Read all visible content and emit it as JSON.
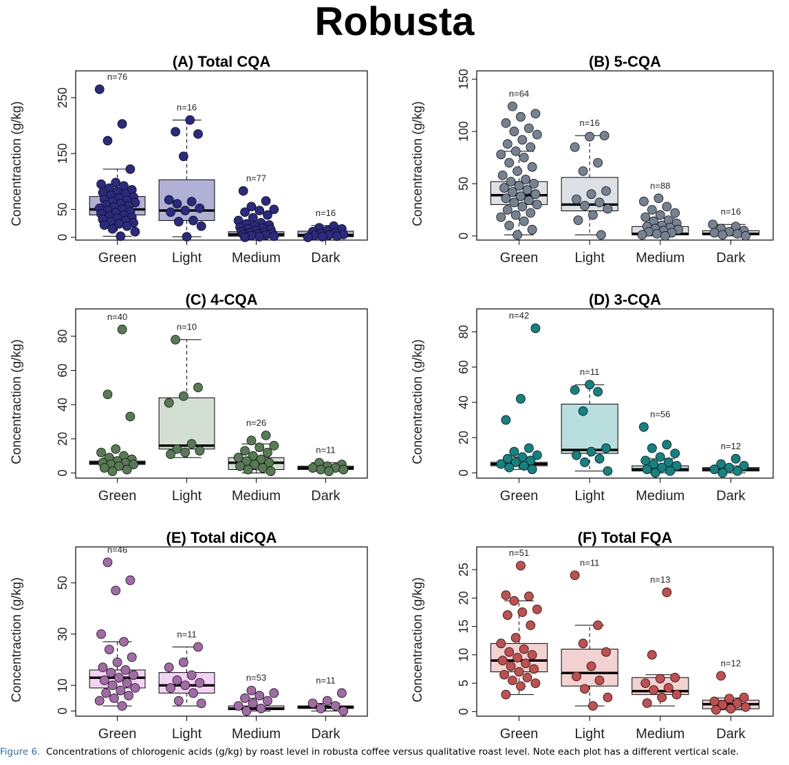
{
  "title": "Robusta",
  "caption": {
    "label": "Figure 6.",
    "text": "Concentrations of chlorogenic acids (g/kg) by roast level in robusta coffee versus qualitative roast level. Note each plot has a different vertical scale."
  },
  "chart_data": [
    {
      "type": "boxplot",
      "title": "(A) Total CQA",
      "ylabel": "Concentraction (g/kg)",
      "xlabel": "",
      "categories": [
        "Green",
        "Light",
        "Medium",
        "Dark"
      ],
      "ylim": [
        -5,
        298
      ],
      "yticks": [
        0,
        50,
        150,
        250
      ],
      "color": "#2a2a80",
      "box_fill": "#b1b1d6",
      "counts": [
        "n=76",
        "n=16",
        "n=77",
        "n=16"
      ],
      "boxes": [
        {
          "whislo": 2,
          "q1": 40,
          "med": 50,
          "q3": 73,
          "whishi": 122
        },
        {
          "whislo": 1,
          "q1": 30,
          "med": 48,
          "q3": 103,
          "whishi": 210
        },
        {
          "whislo": 0,
          "q1": 2,
          "med": 5,
          "q3": 10,
          "whishi": 24
        },
        {
          "whislo": 0,
          "q1": 1,
          "med": 4,
          "q3": 11,
          "whishi": 21
        }
      ],
      "points": [
        [
          265,
          203,
          173,
          122,
          98,
          95,
          92,
          88,
          85,
          82,
          80,
          78,
          75,
          72,
          70,
          68,
          66,
          64,
          62,
          60,
          58,
          56,
          54,
          52,
          50,
          48,
          46,
          44,
          42,
          40,
          38,
          36,
          34,
          32,
          30,
          28,
          26,
          24,
          22,
          20,
          15,
          10,
          2
        ],
        [
          210,
          189,
          185,
          145,
          67,
          64,
          60,
          52,
          48,
          45,
          30,
          28,
          20,
          1
        ],
        [
          83,
          65,
          55,
          50,
          48,
          45,
          40,
          35,
          30,
          26,
          24,
          22,
          20,
          18,
          16,
          15,
          14,
          12,
          10,
          9,
          8,
          7,
          6,
          5,
          4,
          3,
          2,
          1,
          0
        ],
        [
          20,
          17,
          15,
          12,
          10,
          8,
          6,
          5,
          4,
          3,
          2,
          1,
          0
        ]
      ]
    },
    {
      "type": "boxplot",
      "title": "(B) 5-CQA",
      "ylabel": "Concentraction (g/kg)",
      "xlabel": "",
      "categories": [
        "Green",
        "Light",
        "Medium",
        "Dark"
      ],
      "ylim": [
        -4,
        158
      ],
      "yticks": [
        0,
        50,
        100,
        150
      ],
      "color": "#758291",
      "box_fill": "#dde0e4",
      "counts": [
        "n=64",
        "n=16",
        "n=88",
        "n=16"
      ],
      "boxes": [
        {
          "whislo": 1,
          "q1": 30,
          "med": 39,
          "q3": 52,
          "whishi": 81
        },
        {
          "whislo": 1,
          "q1": 24,
          "med": 30,
          "q3": 56,
          "whishi": 96
        },
        {
          "whislo": 0,
          "q1": 1,
          "med": 2,
          "q3": 9,
          "whishi": 17
        },
        {
          "whislo": 0,
          "q1": 1,
          "med": 2,
          "q3": 5,
          "whishi": 11
        }
      ],
      "points": [
        [
          124,
          117,
          114,
          108,
          103,
          100,
          97,
          92,
          88,
          85,
          81,
          78,
          75,
          70,
          66,
          62,
          58,
          54,
          52,
          50,
          48,
          46,
          44,
          42,
          40,
          38,
          36,
          34,
          32,
          30,
          28,
          25,
          22,
          20,
          18,
          14,
          10,
          6,
          1
        ],
        [
          96,
          95,
          85,
          70,
          62,
          43,
          40,
          35,
          32,
          29,
          26,
          20,
          15,
          1
        ],
        [
          36,
          33,
          28,
          25,
          22,
          20,
          18,
          15,
          14,
          12,
          10,
          9,
          8,
          7,
          6,
          5,
          4,
          3,
          2,
          1,
          0
        ],
        [
          11,
          9,
          7,
          5,
          4,
          3,
          2,
          1,
          0
        ]
      ]
    },
    {
      "type": "boxplot",
      "title": "(C) 4-CQA",
      "ylabel": "Concentraction (g/kg)",
      "xlabel": "",
      "categories": [
        "Green",
        "Light",
        "Medium",
        "Dark"
      ],
      "ylim": [
        -3,
        96
      ],
      "yticks": [
        0,
        20,
        40,
        60,
        80
      ],
      "color": "#577a55",
      "box_fill": "#d3dfd2",
      "counts": [
        "n=40",
        "n=10",
        "n=26",
        "n=11"
      ],
      "boxes": [
        {
          "whislo": 2,
          "q1": 5,
          "med": 6,
          "q3": 7,
          "whishi": 9
        },
        {
          "whislo": 9,
          "q1": 14,
          "med": 16,
          "q3": 44,
          "whishi": 78
        },
        {
          "whislo": 0,
          "q1": 2,
          "med": 6,
          "q3": 9,
          "whishi": 17
        },
        {
          "whislo": 1,
          "q1": 2,
          "med": 3,
          "q3": 4,
          "whishi": 6
        }
      ],
      "points": [
        [
          84,
          46,
          33,
          14,
          12,
          10,
          9,
          8,
          7,
          6,
          6,
          5,
          5,
          4,
          3,
          2,
          1
        ],
        [
          78,
          50,
          45,
          41,
          17,
          14,
          13,
          12,
          11
        ],
        [
          22,
          19,
          16,
          15,
          13,
          12,
          10,
          9,
          8,
          7,
          6,
          5,
          4,
          3,
          2,
          1
        ],
        [
          6,
          5,
          4,
          3,
          3,
          2,
          2,
          1
        ]
      ]
    },
    {
      "type": "boxplot",
      "title": "(D) 3-CQA",
      "ylabel": "Concentraction (g/kg)",
      "xlabel": "",
      "categories": [
        "Green",
        "Light",
        "Medium",
        "Dark"
      ],
      "ylim": [
        -3,
        93
      ],
      "yticks": [
        0,
        20,
        40,
        60,
        80
      ],
      "color": "#138282",
      "box_fill": "#b9dede",
      "counts": [
        "n=42",
        "n=11",
        "n=56",
        "n=12"
      ],
      "boxes": [
        {
          "whislo": 2,
          "q1": 4,
          "med": 5,
          "q3": 6,
          "whishi": 9
        },
        {
          "whislo": 1,
          "q1": 11,
          "med": 13,
          "q3": 39,
          "whishi": 50
        },
        {
          "whislo": 0,
          "q1": 1,
          "med": 2,
          "q3": 4,
          "whishi": 8
        },
        {
          "whislo": 0,
          "q1": 1,
          "med": 2,
          "q3": 3,
          "whishi": 4
        }
      ],
      "points": [
        [
          82,
          42,
          30,
          14,
          12,
          10,
          9,
          8,
          7,
          6,
          5,
          4,
          3,
          2
        ],
        [
          50,
          47,
          46,
          35,
          14,
          12,
          10,
          8,
          6,
          1
        ],
        [
          26,
          16,
          14,
          11,
          9,
          7,
          6,
          5,
          4,
          3,
          2,
          1,
          0
        ],
        [
          8,
          5,
          4,
          3,
          2,
          1,
          0
        ]
      ]
    },
    {
      "type": "boxplot",
      "title": "(E) Total diCQA",
      "ylabel": "Concentraction (g/kg)",
      "xlabel": "",
      "categories": [
        "Green",
        "Light",
        "Medium",
        "Dark"
      ],
      "ylim": [
        -2,
        64
      ],
      "yticks": [
        0,
        10,
        30,
        50
      ],
      "color": "#a26aa6",
      "box_fill": "#f4d4f5",
      "counts": [
        "n=46",
        "n=11",
        "n=53",
        "n=11"
      ],
      "boxes": [
        {
          "whislo": 2,
          "q1": 9,
          "med": 13,
          "q3": 16,
          "whishi": 27
        },
        {
          "whislo": 2,
          "q1": 7,
          "med": 10,
          "q3": 15,
          "whishi": 25
        },
        {
          "whislo": 0,
          "q1": 0.5,
          "med": 1,
          "q3": 2,
          "whishi": 5
        },
        {
          "whislo": 0,
          "q1": 1,
          "med": 1.5,
          "q3": 2,
          "whishi": 3
        }
      ],
      "points": [
        [
          58,
          51,
          47,
          30,
          27,
          24,
          21,
          19,
          17,
          16,
          15,
          14,
          13,
          12,
          11,
          10,
          9,
          8,
          7,
          6,
          5,
          4,
          2
        ],
        [
          25,
          19,
          17,
          14,
          12,
          11,
          10,
          9,
          7,
          4,
          3
        ],
        [
          8,
          7,
          6,
          5,
          4,
          3,
          2,
          1,
          0
        ],
        [
          7,
          4,
          3,
          2,
          1,
          0
        ]
      ]
    },
    {
      "type": "boxplot",
      "title": "(F) Total FQA",
      "ylabel": "Concentraction (g/kg)",
      "xlabel": "",
      "categories": [
        "Green",
        "Light",
        "Medium",
        "Dark"
      ],
      "ylim": [
        -0.8,
        29
      ],
      "yticks": [
        0,
        5,
        10,
        15,
        20,
        25
      ],
      "color": "#c24e4e",
      "box_fill": "#f3d2d2",
      "counts": [
        "n=51",
        "n=11",
        "n=13",
        "n=12"
      ],
      "boxes": [
        {
          "whislo": 3,
          "q1": 7,
          "med": 9,
          "q3": 12,
          "whishi": 19.5
        },
        {
          "whislo": 1,
          "q1": 4.5,
          "med": 6.8,
          "q3": 11,
          "whishi": 15.2
        },
        {
          "whislo": 1,
          "q1": 3,
          "med": 3.6,
          "q3": 6,
          "whishi": 6.5
        },
        {
          "whislo": 0.3,
          "q1": 0.5,
          "med": 1.3,
          "q3": 2,
          "whishi": 2.4
        }
      ],
      "points": [
        [
          25.7,
          20.5,
          20.3,
          19.5,
          18,
          17.5,
          17,
          15.2,
          13,
          12,
          11,
          10.5,
          10,
          9.5,
          9,
          8.5,
          8,
          7.5,
          7,
          6.5,
          6,
          5.5,
          5,
          4.5,
          3
        ],
        [
          24,
          15.2,
          12,
          10.5,
          8,
          6.2,
          5.5,
          4,
          2.5,
          1
        ],
        [
          21,
          10,
          6,
          5.8,
          5,
          4.2,
          3.8,
          3,
          2.5,
          1.5
        ],
        [
          6.3,
          2.5,
          2.3,
          1.8,
          1.5,
          1.2,
          0.8,
          0.5,
          0.3
        ]
      ]
    }
  ]
}
